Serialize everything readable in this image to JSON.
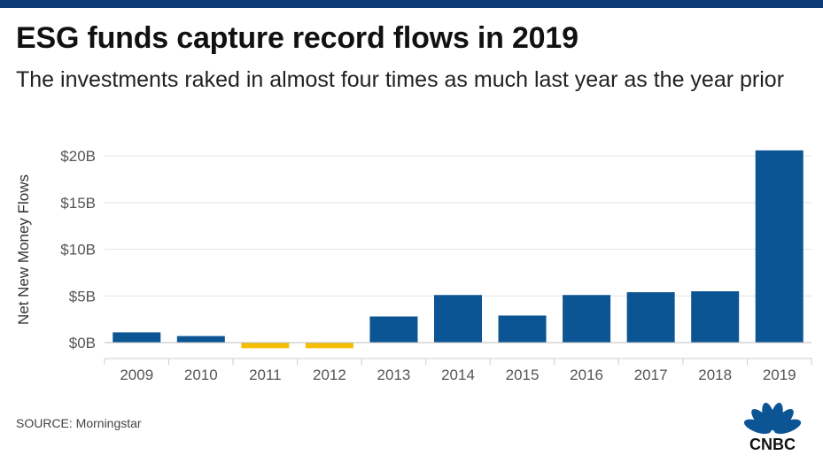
{
  "header": {
    "title": "ESG funds capture record flows in 2019",
    "subtitle": "The investments raked in almost four times as much last year as the year prior"
  },
  "footer": {
    "source": "SOURCE: Morningstar",
    "brand": "CNBC"
  },
  "colors": {
    "positive": "#0c5594",
    "negative": "#f5be00",
    "top_bar": "#0b3a74"
  },
  "chart_data": {
    "type": "bar",
    "ylabel": "Net New Money Flows",
    "categories": [
      "2009",
      "2010",
      "2011",
      "2012",
      "2013",
      "2014",
      "2015",
      "2016",
      "2017",
      "2018",
      "2019"
    ],
    "series": [
      {
        "values": [
          1.1,
          0.7,
          -0.6,
          -0.6,
          2.8,
          5.1,
          2.9,
          5.1,
          5.4,
          5.5,
          20.6
        ]
      }
    ],
    "y_ticks": [
      0,
      5,
      10,
      15,
      20
    ],
    "y_tick_labels": [
      "$0B",
      "$5B",
      "$10B",
      "$15B",
      "$20B"
    ],
    "ylim": [
      -1,
      21
    ],
    "units": "billions of US dollars",
    "grid": "horizontal"
  }
}
